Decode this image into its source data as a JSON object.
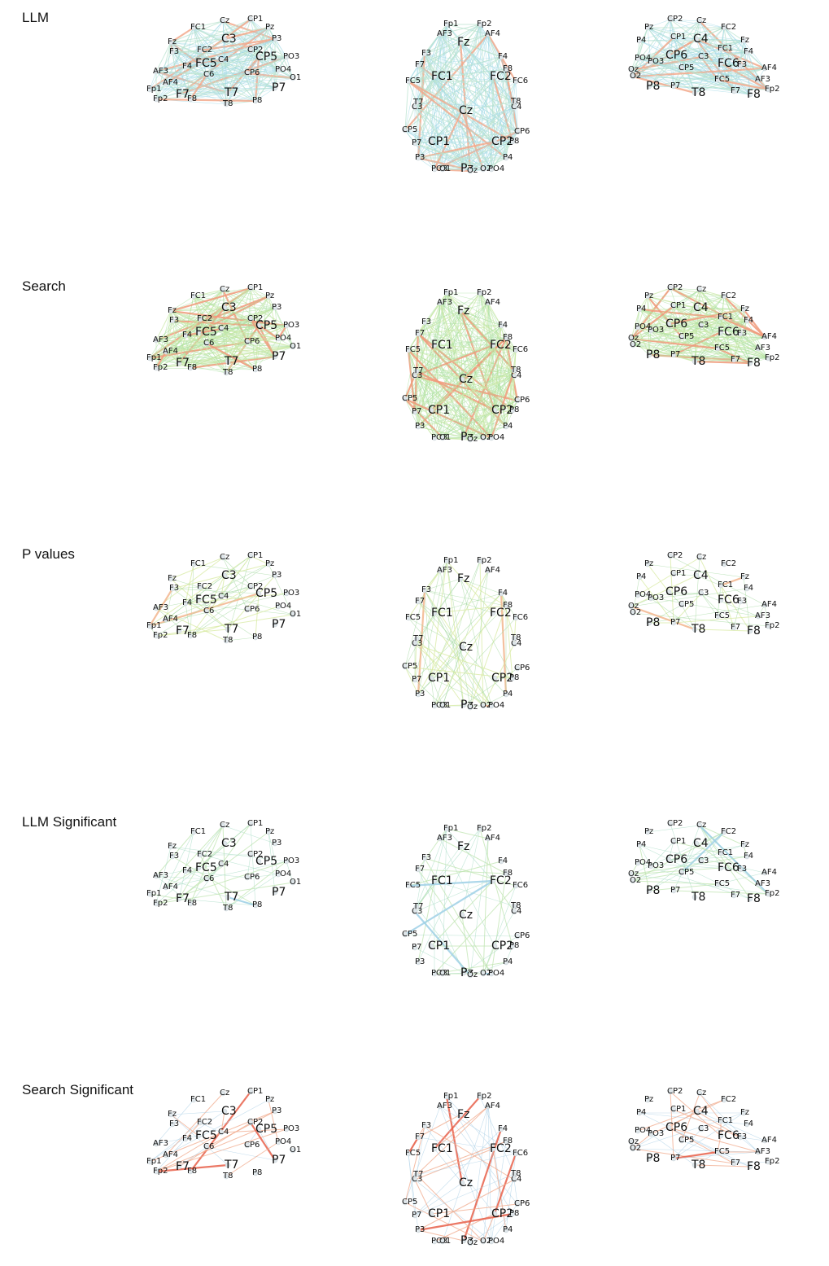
{
  "rows": [
    {
      "label": "LLM",
      "edge_style": "dense",
      "edge_palette": [
        "#9fd8e6",
        "#b9e3cf",
        "#f2a98c"
      ]
    },
    {
      "label": "Search",
      "edge_style": "dense-green",
      "edge_palette": [
        "#a8dfa0",
        "#c9e8a8",
        "#f09a7a"
      ]
    },
    {
      "label": "P values",
      "edge_style": "sparse",
      "edge_palette": [
        "#a4d9a0",
        "#d7e9a0",
        "#f2b58d"
      ]
    },
    {
      "label": "LLM Significant",
      "edge_style": "sparse-light",
      "edge_palette": [
        "#a7dcc4",
        "#bfe4b0",
        "#9fd0e6"
      ]
    },
    {
      "label": "Search Significant",
      "edge_style": "sparse-red",
      "edge_palette": [
        "#a9cfe6",
        "#f0a88a",
        "#e8604a"
      ]
    }
  ],
  "panels": {
    "left": {
      "electrodes_large": [
        "C3",
        "FC5",
        "CP5",
        "T7",
        "F7",
        "P7"
      ],
      "electrodes_small": [
        "FC1",
        "Cz",
        "CP1",
        "Pz",
        "P3",
        "Fz",
        "F3",
        "PO3",
        "AF3",
        "O1",
        "Fp1",
        "FC2",
        "CP2",
        "C4",
        "CP6",
        "PO4",
        "F4",
        "C6",
        "F8",
        "T8",
        "P8",
        "Fp2",
        "AF4"
      ]
    },
    "middle": {
      "electrodes_large": [
        "Fz",
        "FC1",
        "FC2",
        "Cz",
        "CP1",
        "CP2",
        "Pz"
      ],
      "electrodes_small": [
        "AF3",
        "Fp1",
        "Fp2",
        "AF4",
        "F3",
        "F7",
        "F4",
        "F8",
        "FC5",
        "FC6",
        "C3",
        "T7",
        "C4",
        "T8",
        "CP5",
        "P7",
        "CP6",
        "P8",
        "P3",
        "P4",
        "PO3",
        "O1",
        "Oz",
        "O2",
        "PO4"
      ]
    },
    "right": {
      "electrodes_large": [
        "C4",
        "CP6",
        "FC6",
        "P8",
        "T8",
        "F8"
      ],
      "electrodes_small": [
        "CP2",
        "Pz",
        "Cz",
        "FC2",
        "Fz",
        "P4",
        "F4",
        "PO4",
        "AF4",
        "O2",
        "Oz",
        "Fp2",
        "CP1",
        "FC1",
        "C3",
        "CP5",
        "F3",
        "FC5",
        "P7",
        "F7",
        "AF3",
        "PO3"
      ]
    }
  }
}
